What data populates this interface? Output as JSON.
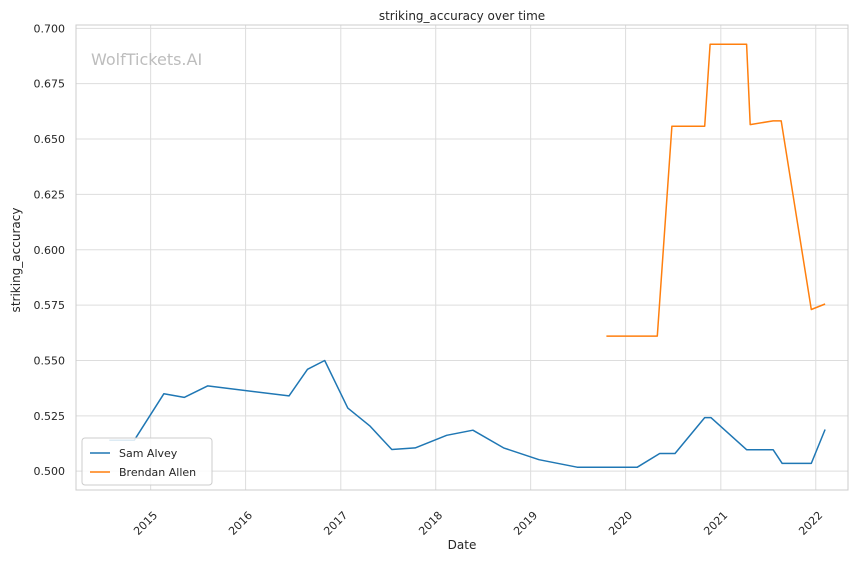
{
  "chart_data": {
    "type": "line",
    "title": "striking_accuracy over time",
    "xlabel": "Date",
    "ylabel": "striking_accuracy",
    "watermark": "WolfTickets.AI",
    "xlim": [
      "2014-03-20",
      "2022-05-05"
    ],
    "ylim": [
      0.4915,
      0.7015
    ],
    "x_ticks": [
      "2015-01-01",
      "2016-01-01",
      "2017-01-01",
      "2018-01-01",
      "2019-01-01",
      "2020-01-01",
      "2021-01-01",
      "2022-01-01"
    ],
    "x_tick_labels": [
      "2015",
      "2016",
      "2017",
      "2018",
      "2019",
      "2020",
      "2021",
      "2022"
    ],
    "y_ticks": [
      0.5,
      0.525,
      0.55,
      0.575,
      0.6,
      0.625,
      0.65,
      0.675,
      0.7
    ],
    "y_tick_labels": [
      "0.500",
      "0.525",
      "0.550",
      "0.575",
      "0.600",
      "0.625",
      "0.650",
      "0.675",
      "0.700"
    ],
    "grid": true,
    "legend_position": "lower-left",
    "series": [
      {
        "name": "Sam Alvey",
        "color": "#1f77b4",
        "points": [
          [
            "2014-07-26",
            0.514
          ],
          [
            "2014-10-30",
            0.514
          ],
          [
            "2015-02-21",
            0.535
          ],
          [
            "2015-05-10",
            0.5333
          ],
          [
            "2015-08-08",
            0.5385
          ],
          [
            "2016-06-16",
            0.534
          ],
          [
            "2016-08-26",
            0.546
          ],
          [
            "2016-10-31",
            0.55
          ],
          [
            "2017-01-28",
            0.5285
          ],
          [
            "2017-04-22",
            0.5205
          ],
          [
            "2017-07-16",
            0.5098
          ],
          [
            "2017-10-14",
            0.5105
          ],
          [
            "2018-02-12",
            0.5162
          ],
          [
            "2018-05-24",
            0.5185
          ],
          [
            "2018-09-19",
            0.5105
          ],
          [
            "2019-02-02",
            0.5052
          ],
          [
            "2019-06-29",
            0.5018
          ],
          [
            "2020-02-15",
            0.5018
          ],
          [
            "2020-05-11",
            0.508
          ],
          [
            "2020-07-09",
            0.508
          ],
          [
            "2020-10-31",
            0.5242
          ],
          [
            "2020-11-24",
            0.5242
          ],
          [
            "2021-04-10",
            0.5097
          ],
          [
            "2021-07-21",
            0.5097
          ],
          [
            "2021-08-25",
            0.5035
          ],
          [
            "2021-12-15",
            0.5035
          ],
          [
            "2022-02-06",
            0.5188
          ]
        ]
      },
      {
        "name": "Brendan Allen",
        "color": "#ff7f0e",
        "points": [
          [
            "2019-10-19",
            0.561
          ],
          [
            "2020-05-02",
            0.561
          ],
          [
            "2020-06-27",
            0.6558
          ],
          [
            "2020-10-31",
            0.6558
          ],
          [
            "2020-11-21",
            0.6928
          ],
          [
            "2021-04-10",
            0.6928
          ],
          [
            "2021-04-24",
            0.6565
          ],
          [
            "2021-07-21",
            0.6582
          ],
          [
            "2021-08-21",
            0.6582
          ],
          [
            "2021-12-15",
            0.573
          ],
          [
            "2022-02-06",
            0.5755
          ]
        ]
      }
    ]
  }
}
